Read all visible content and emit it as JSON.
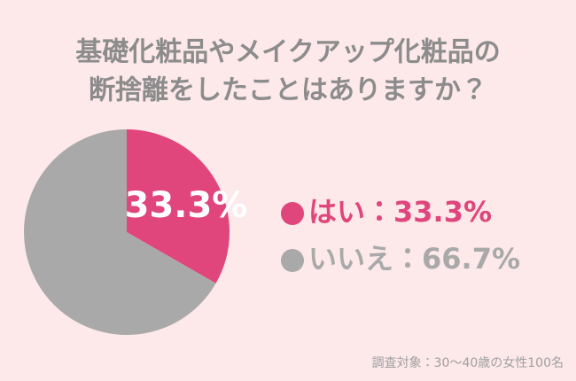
{
  "chart_data": {
    "type": "pie",
    "title": [
      "基礎化粧品やメイクアップ化粧品の",
      "断捨離をしたことはありますか？"
    ],
    "categories": [
      "はい",
      "いいえ"
    ],
    "values": [
      33.3,
      66.7
    ],
    "value_labels": [
      "33.3%",
      null
    ],
    "legend_labels": [
      "はい：33.3%",
      "いいえ：66.7%"
    ],
    "colors": [
      "#e0457b",
      "#a9a9a9"
    ],
    "note": "調査対象：30〜40歳の女性100名"
  }
}
